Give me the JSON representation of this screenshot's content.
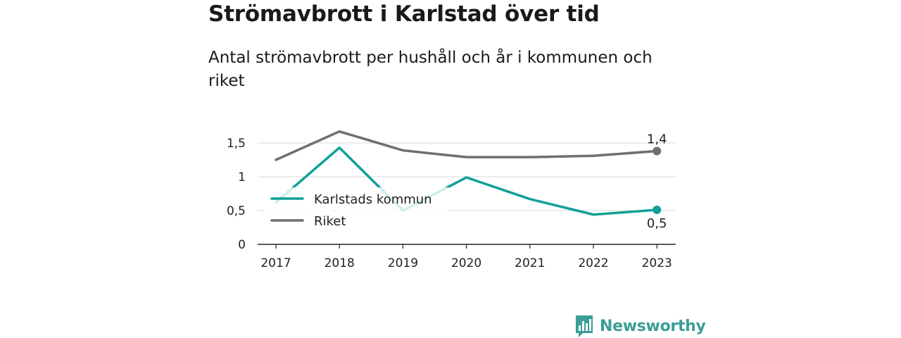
{
  "title": "Strömavbrott i Karlstad över tid",
  "subtitle": "Antal strömavbrott per hushåll och år i kommunen och riket",
  "brand": {
    "name": "Newsworthy",
    "icon": "bar-chart-logo-icon",
    "color": "#3a9e96"
  },
  "chart_data": {
    "type": "line",
    "title": "Strömavbrott i Karlstad över tid",
    "subtitle": "Antal strömavbrott per hushåll och år i kommunen och riket",
    "x": [
      "2017",
      "2018",
      "2019",
      "2020",
      "2021",
      "2022",
      "2023"
    ],
    "y_ticks": [
      "0",
      "0,5",
      "1",
      "1,5"
    ],
    "ylim": [
      0,
      1.5
    ],
    "grid": true,
    "legend_position": "center-left",
    "series": [
      {
        "name": "Karlstads kommun",
        "color": "#11a197",
        "values": [
          0.62,
          1.43,
          0.5,
          0.99,
          0.67,
          0.44,
          0.51
        ],
        "end_label": "0,5"
      },
      {
        "name": "Riket",
        "color": "#6f6e73",
        "values": [
          1.25,
          1.67,
          1.39,
          1.29,
          1.29,
          1.31,
          1.38
        ],
        "end_label": "1,4"
      }
    ]
  }
}
